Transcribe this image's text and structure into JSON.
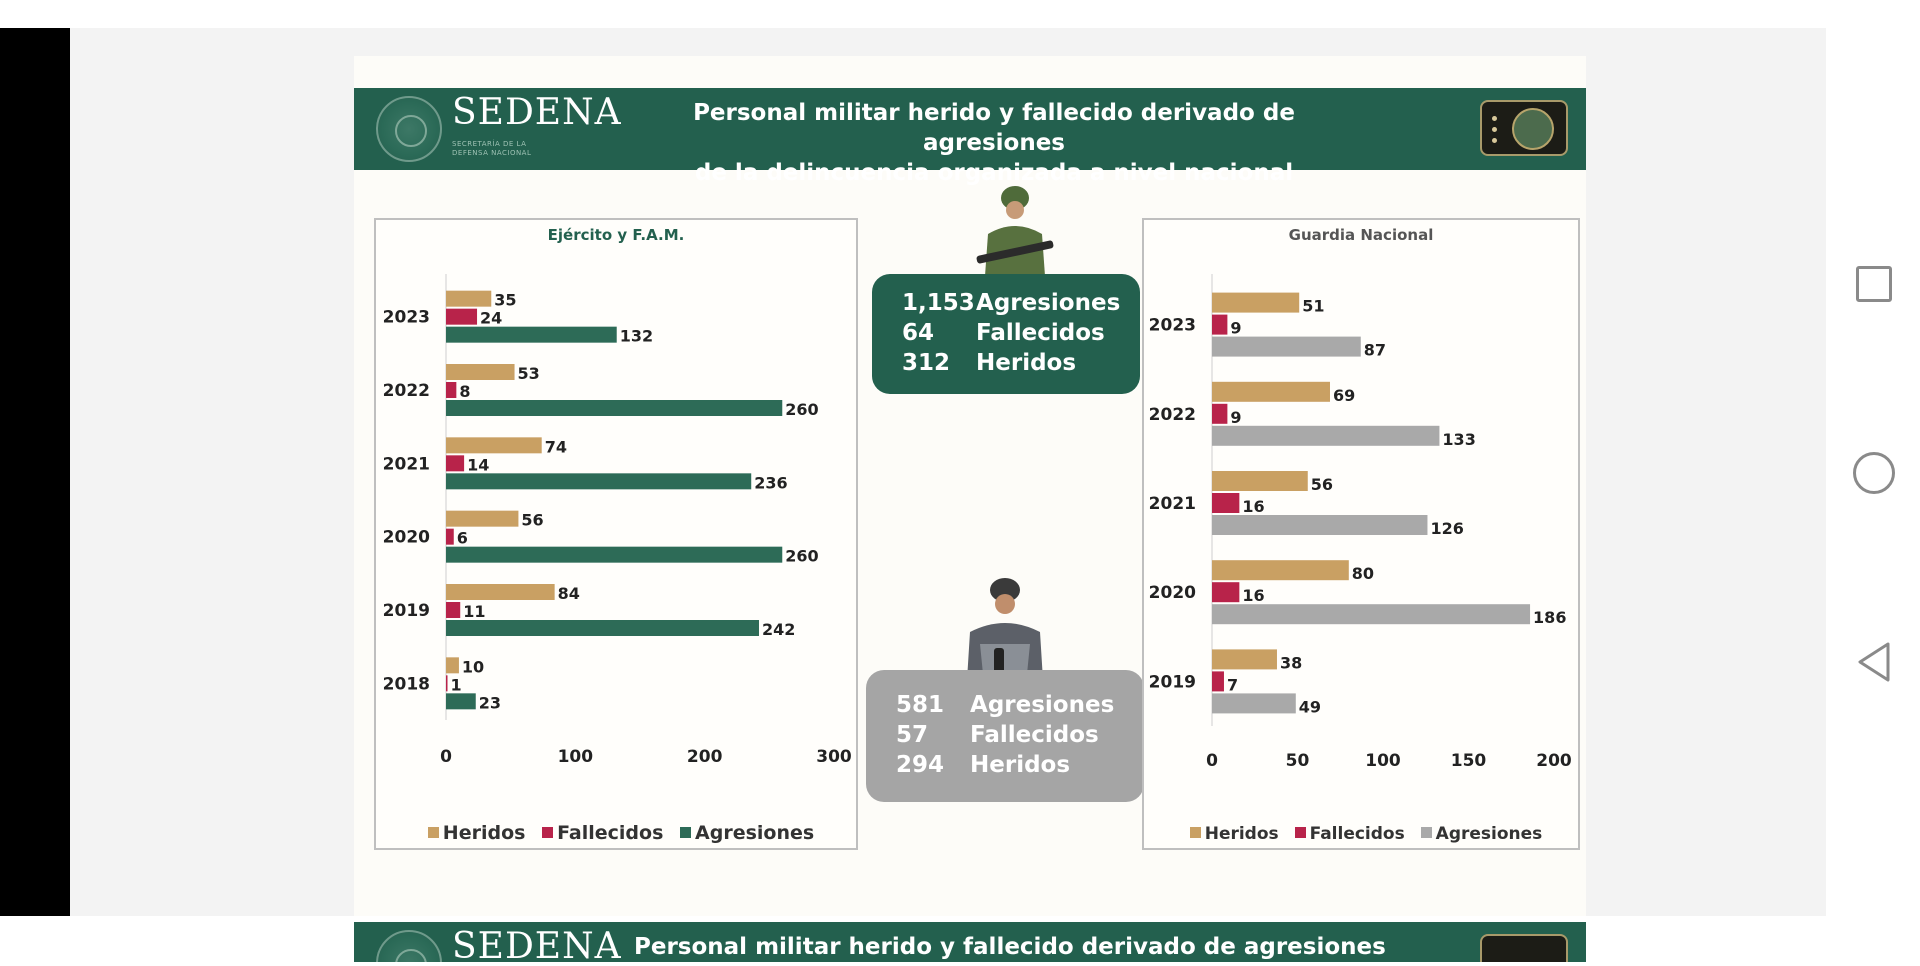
{
  "header": {
    "logo_text": "SEDENA",
    "logo_sub_1": "SECRETARÍA DE LA",
    "logo_sub_2": "DEFENSA NACIONAL",
    "title_line1": "Personal militar herido y fallecido derivado de agresiones",
    "title_line2": "de la delincuencia organizada a nivel nacional"
  },
  "next_slide": {
    "logo_text": "SEDENA",
    "title_partial": "Personal militar herido y fallecido derivado de agresiones de"
  },
  "colors": {
    "brand_green": "#23604e",
    "heridos": "#c9a063",
    "fallecidos": "#b8234a",
    "agresiones_ejercito": "#2d6b57",
    "agresiones_gn": "#a9a9a9"
  },
  "summary_ejercito": {
    "agresiones_num": "1,153",
    "agresiones_label": "Agresiones",
    "fallecidos_num": "64",
    "fallecidos_label": "Fallecidos",
    "heridos_num": "312",
    "heridos_label": "Heridos"
  },
  "summary_gn": {
    "agresiones_num": "581",
    "agresiones_label": "Agresiones",
    "fallecidos_num": "57",
    "fallecidos_label": "Fallecidos",
    "heridos_num": "294",
    "heridos_label": "Heridos"
  },
  "chart_data": [
    {
      "type": "bar",
      "orientation": "horizontal",
      "title": "Ejército y  F.A.M.",
      "categories": [
        "2023",
        "2022",
        "2021",
        "2020",
        "2019",
        "2018"
      ],
      "series": [
        {
          "name": "Heridos",
          "values": [
            35,
            53,
            74,
            56,
            84,
            10
          ]
        },
        {
          "name": "Fallecidos",
          "values": [
            24,
            8,
            14,
            6,
            11,
            1
          ]
        },
        {
          "name": "Agresiones",
          "values": [
            132,
            260,
            236,
            260,
            242,
            23
          ]
        }
      ],
      "xlim": [
        0,
        300
      ],
      "xticks": [
        "0",
        "100",
        "200",
        "300"
      ],
      "legend": "bottom"
    },
    {
      "type": "bar",
      "orientation": "horizontal",
      "title": "Guardia Nacional",
      "categories": [
        "2023",
        "2022",
        "2021",
        "2020",
        "2019"
      ],
      "series": [
        {
          "name": "Heridos",
          "values": [
            51,
            69,
            56,
            80,
            38
          ]
        },
        {
          "name": "Fallecidos",
          "values": [
            9,
            9,
            16,
            16,
            7
          ]
        },
        {
          "name": "Agresiones",
          "values": [
            87,
            133,
            126,
            186,
            49
          ]
        }
      ],
      "xlim": [
        0,
        200
      ],
      "xticks": [
        "0",
        "50",
        "100",
        "150",
        "200"
      ],
      "legend": "bottom"
    }
  ],
  "nav": {
    "recents_icon": "square-icon",
    "home_icon": "circle-icon",
    "back_icon": "triangle-back-icon"
  }
}
